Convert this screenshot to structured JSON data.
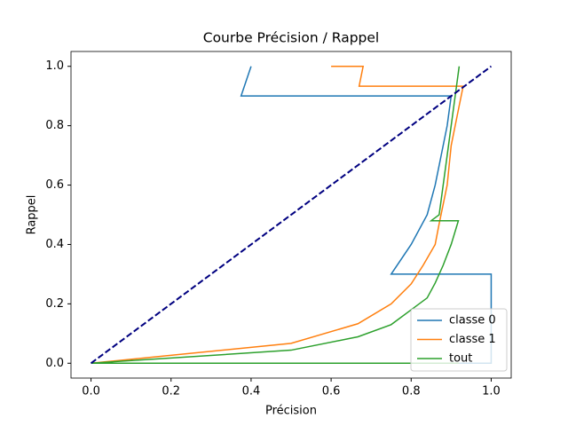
{
  "chart_data": {
    "type": "line",
    "title": "Courbe Précision / Rappel",
    "x_label": "Précision",
    "y_label": "Rappel",
    "xlim": [
      -0.05,
      1.05
    ],
    "ylim": [
      -0.05,
      1.05
    ],
    "xticks": [
      {
        "value": 0,
        "label": "0.0"
      },
      {
        "value": 0.2,
        "label": "0.2"
      },
      {
        "value": 0.4,
        "label": "0.4"
      },
      {
        "value": 0.6,
        "label": "0.6"
      },
      {
        "value": 0.8,
        "label": "0.8"
      },
      {
        "value": 1,
        "label": "1.0"
      }
    ],
    "yticks": [
      {
        "value": 0,
        "label": "0.0"
      },
      {
        "value": 0.2,
        "label": "0.2"
      },
      {
        "value": 0.4,
        "label": "0.4"
      },
      {
        "value": 0.6,
        "label": "0.6"
      },
      {
        "value": 0.8,
        "label": "0.8"
      },
      {
        "value": 1,
        "label": "1.0"
      }
    ],
    "grid": false,
    "legend": "lower right",
    "series": [
      {
        "name": "classe 0",
        "color": "#1f77b4",
        "x": [
          0.4,
          0.375,
          0.9,
          0.89,
          0.875,
          0.86,
          0.84,
          0.8,
          0.75,
          1.0,
          1.0,
          0
        ],
        "values": [
          1.0,
          0.9,
          0.9,
          0.8,
          0.7,
          0.6,
          0.5,
          0.4,
          0.3,
          0.3,
          0.0,
          0
        ]
      },
      {
        "name": "classe 1",
        "color": "#ff7f0e",
        "x": [
          0.6,
          0.68,
          0.67,
          0.93,
          0.92,
          0.91,
          0.9,
          0.89,
          0.87,
          0.86,
          0.83,
          0.8,
          0.75,
          0.667,
          0.5,
          0
        ],
        "values": [
          1.0,
          1.0,
          0.933,
          0.933,
          0.867,
          0.8,
          0.733,
          0.6,
          0.47,
          0.4,
          0.33,
          0.267,
          0.2,
          0.133,
          0.067,
          0
        ]
      },
      {
        "name": "tout",
        "color": "#2ca02c",
        "x": [
          0.92,
          0.91,
          0.9,
          0.89,
          0.88,
          0.87,
          0.85,
          0.918,
          0.9,
          0.88,
          0.86,
          0.84,
          0.8,
          0.75,
          0.667,
          0.5,
          0,
          0.92
        ],
        "values": [
          1.0,
          0.9,
          0.8,
          0.7,
          0.6,
          0.5,
          0.48,
          0.48,
          0.4,
          0.33,
          0.27,
          0.22,
          0.18,
          0.13,
          0.089,
          0.044,
          0,
          0
        ]
      }
    ],
    "diagonal": {
      "x": [
        0,
        1
      ],
      "y": [
        0,
        1
      ],
      "color": "#000080"
    }
  }
}
